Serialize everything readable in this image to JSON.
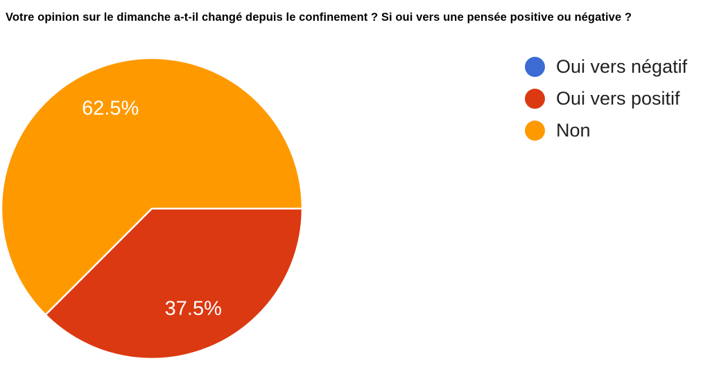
{
  "header": {
    "title": "Votre opinion sur le dimanche a-t-il changé depuis le confinement ? Si oui vers une pensée positive ou négative ?"
  },
  "chart_data": {
    "type": "pie",
    "title": "Votre opinion sur le dimanche a-t-il changé depuis le confinement ? Si oui vers une pensée positive ou négative ?",
    "unit": "percent",
    "direction": "clockwise",
    "start_angle_deg_from_east": 0,
    "legend_position": "right",
    "background_color": "#FFFFFF",
    "slice_label_color": "#FFFFFF",
    "slices": [
      {
        "label": "Oui vers négatif",
        "value": 0,
        "display_label": "",
        "color": "#3B6BD3"
      },
      {
        "label": "Oui vers positif",
        "value": 37.5,
        "display_label": "37.5%",
        "color": "#DB3912"
      },
      {
        "label": "Non",
        "value": 62.5,
        "display_label": "62.5%",
        "color": "#FF9900"
      }
    ]
  }
}
